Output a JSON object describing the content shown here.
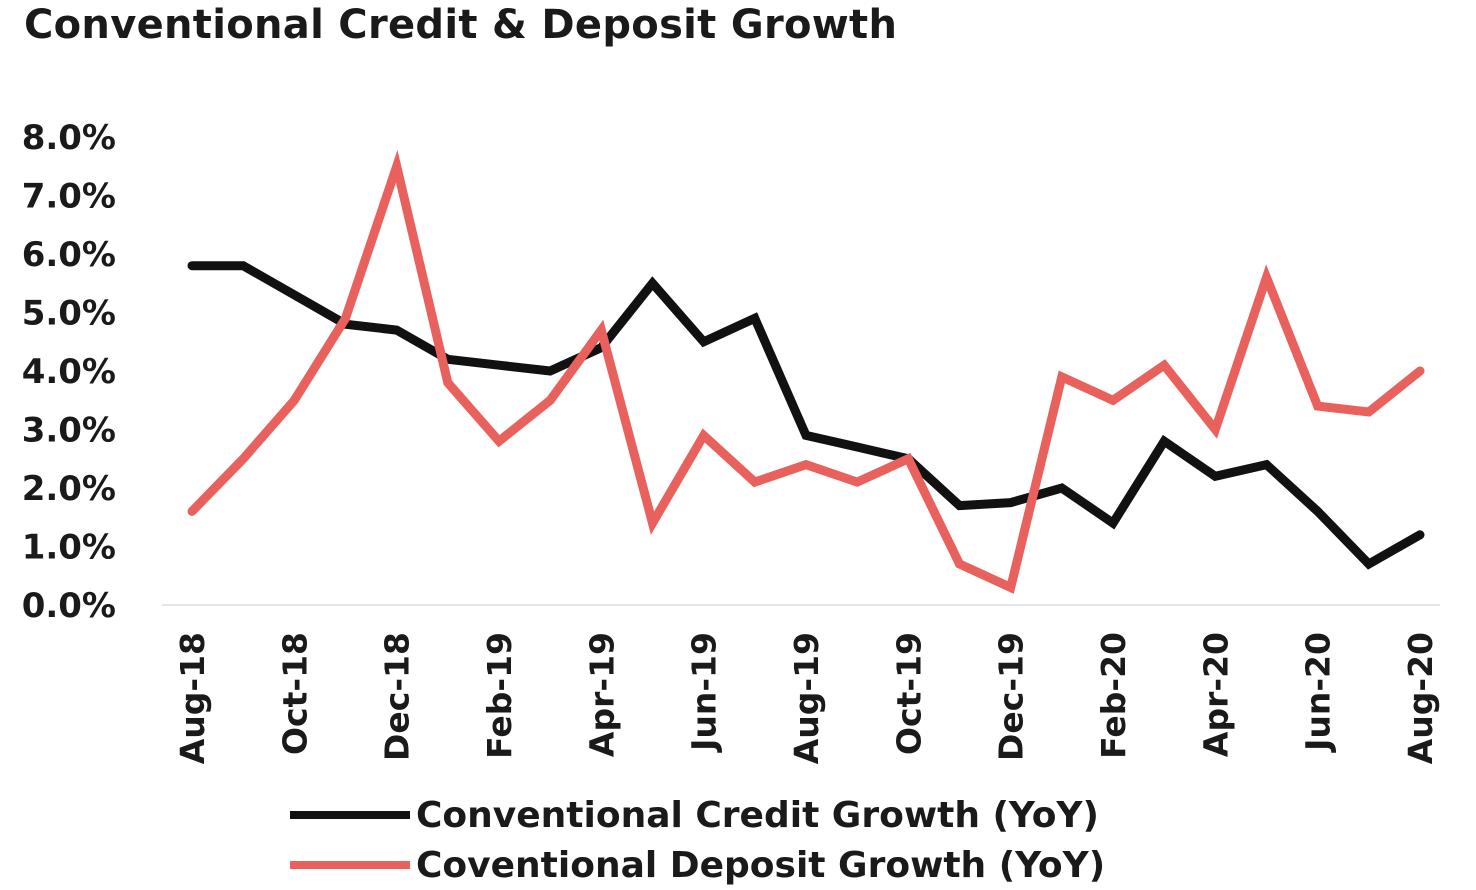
{
  "chart_data": {
    "type": "line",
    "title": "Conventional Credit & Deposit Growth",
    "x": [
      "Aug-18",
      "Sep-18",
      "Oct-18",
      "Nov-18",
      "Dec-18",
      "Jan-19",
      "Feb-19",
      "Mar-19",
      "Apr-19",
      "May-19",
      "Jun-19",
      "Jul-19",
      "Aug-19",
      "Sep-19",
      "Oct-19",
      "Nov-19",
      "Dec-19",
      "Jan-20",
      "Feb-20",
      "Mar-20",
      "Apr-20",
      "May-20",
      "Jun-20",
      "Jul-20",
      "Aug-20"
    ],
    "x_tick_labels": [
      "Aug-18",
      "",
      "Oct-18",
      "",
      "Dec-18",
      "",
      "Feb-19",
      "",
      "Apr-19",
      "",
      "Jun-19",
      "",
      "Aug-19",
      "",
      "Oct-19",
      "",
      "Dec-19",
      "",
      "Feb-20",
      "",
      "Apr-20",
      "",
      "Jun-20",
      "",
      "Aug-20"
    ],
    "y_tick_labels": [
      "0.0%",
      "1.0%",
      "2.0%",
      "3.0%",
      "4.0%",
      "5.0%",
      "6.0%",
      "7.0%",
      "8.0%"
    ],
    "ylim": [
      0,
      8
    ],
    "series": [
      {
        "name": "Conventional Credit Growth (YoY)",
        "color": "#111111",
        "values": [
          5.8,
          5.8,
          5.3,
          4.8,
          4.7,
          4.2,
          4.1,
          4.0,
          4.4,
          5.5,
          4.5,
          4.9,
          2.9,
          2.7,
          2.5,
          1.7,
          1.75,
          2.0,
          1.4,
          2.8,
          2.2,
          2.4,
          1.6,
          0.7,
          1.2
        ]
      },
      {
        "name": "Coventional Deposit Growth (YoY)",
        "color": "#e8615c",
        "values": [
          1.6,
          2.5,
          3.5,
          4.9,
          7.5,
          3.8,
          2.8,
          3.5,
          4.7,
          1.4,
          2.9,
          2.1,
          2.4,
          2.1,
          2.5,
          0.7,
          0.3,
          3.9,
          3.5,
          4.1,
          3.0,
          5.6,
          3.4,
          3.3,
          4.0
        ]
      }
    ],
    "legend_position": "bottom",
    "grid": false
  }
}
